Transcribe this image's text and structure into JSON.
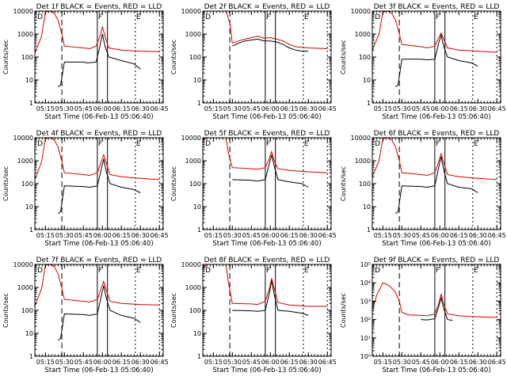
{
  "figure": {
    "xlabel": "Start Time (06-Feb-13 05:06:40)",
    "ylabel": "Counts/sec",
    "x_ticks": [
      "05:15",
      "05:30",
      "05:45",
      "06:00",
      "06:15",
      "06:30",
      "06:45"
    ],
    "colors": {
      "events": "#000000",
      "lld": "#d40000"
    }
  },
  "chart_data": [
    {
      "type": "line",
      "title": "Det 1f BLACK = Events, RED = LLD",
      "y_scale": "log",
      "ylim": [
        1,
        10000
      ],
      "y_ticks": [
        "1",
        "10",
        "100",
        "1000",
        "10000"
      ],
      "xlim": [
        "05:06:40",
        "06:48"
      ],
      "x_tick_times": [
        "05:15",
        "05:30",
        "05:45",
        "06:00",
        "06:15",
        "06:30",
        "06:45"
      ],
      "annotations": [
        "D",
        "F",
        "E"
      ],
      "series": [
        {
          "color": "black",
          "x": [
            "05:25",
            "05:27",
            "05:30",
            "05:45",
            "05:48",
            "05:55",
            "05:58",
            "06:00",
            "06:02",
            "06:05",
            "06:15",
            "06:25",
            "06:30"
          ],
          "y": [
            5,
            6,
            60,
            60,
            55,
            60,
            300,
            1000,
            300,
            100,
            70,
            50,
            30
          ]
        },
        {
          "color": "red",
          "x": [
            "05:06:40",
            "05:12",
            "05:15",
            "05:18",
            "05:20",
            "05:22",
            "05:25",
            "05:28",
            "05:30",
            "05:45",
            "05:50",
            "05:55",
            "05:58",
            "06:00",
            "06:02",
            "06:05",
            "06:15",
            "06:30",
            "06:45"
          ],
          "y": [
            150,
            800,
            9000,
            10000,
            9500,
            8000,
            4000,
            1000,
            300,
            250,
            230,
            300,
            800,
            2000,
            800,
            250,
            200,
            180,
            170
          ]
        }
      ]
    },
    {
      "type": "line",
      "title": "Det 2f BLACK = Events, RED = LLD",
      "y_scale": "log",
      "ylim": [
        1,
        10000
      ],
      "y_ticks": [
        "1",
        "10",
        "100",
        "1000",
        "10000"
      ],
      "xlim": [
        "05:06:40",
        "06:48"
      ],
      "x_tick_times": [
        "05:15",
        "05:30",
        "05:45",
        "06:00",
        "06:15",
        "06:30",
        "06:45"
      ],
      "annotations": [
        "D",
        "F",
        "E"
      ],
      "series": [
        {
          "color": "black",
          "x": [
            "05:30",
            "05:35",
            "05:40",
            "05:45",
            "05:50",
            "05:55",
            "06:00",
            "06:05",
            "06:10",
            "06:15",
            "06:20",
            "06:25",
            "06:30"
          ],
          "y": [
            300,
            400,
            500,
            550,
            600,
            500,
            500,
            450,
            350,
            250,
            200,
            180,
            180
          ]
        },
        {
          "color": "red",
          "x": [
            "05:06:40",
            "05:10",
            "05:15",
            "05:20",
            "05:25",
            "05:28",
            "05:30",
            "05:35",
            "05:40",
            "05:45",
            "05:50",
            "05:55",
            "06:00",
            "06:05",
            "06:10",
            "06:15",
            "06:20",
            "06:30",
            "06:45"
          ],
          "y": [
            10000,
            10000,
            10000,
            10000,
            10000,
            3000,
            400,
            500,
            600,
            700,
            800,
            650,
            700,
            600,
            500,
            350,
            280,
            250,
            230
          ]
        }
      ]
    },
    {
      "type": "line",
      "title": "Det 3f BLACK = Events, RED = LLD",
      "y_scale": "log",
      "ylim": [
        1,
        10000
      ],
      "y_ticks": [
        "1",
        "10",
        "100",
        "1000",
        "10000"
      ],
      "xlim": [
        "05:06:40",
        "06:48"
      ],
      "x_tick_times": [
        "05:15",
        "05:30",
        "05:45",
        "06:00",
        "06:15",
        "06:30",
        "06:45"
      ],
      "annotations": [
        "D",
        "F",
        "E"
      ],
      "series": [
        {
          "color": "black",
          "x": [
            "05:25",
            "05:27",
            "05:30",
            "05:45",
            "05:50",
            "05:56",
            "05:59",
            "06:01",
            "06:03",
            "06:06",
            "06:15",
            "06:25",
            "06:30"
          ],
          "y": [
            5,
            6,
            80,
            80,
            75,
            80,
            400,
            900,
            300,
            100,
            70,
            55,
            40
          ]
        },
        {
          "color": "red",
          "x": [
            "05:06:40",
            "05:12",
            "05:15",
            "05:18",
            "05:20",
            "05:22",
            "05:25",
            "05:28",
            "05:30",
            "05:45",
            "05:50",
            "05:56",
            "05:59",
            "06:01",
            "06:03",
            "06:06",
            "06:15",
            "06:30",
            "06:45"
          ],
          "y": [
            200,
            1000,
            9000,
            10000,
            9500,
            8000,
            4000,
            1000,
            350,
            280,
            250,
            300,
            700,
            1100,
            600,
            250,
            200,
            180,
            160
          ]
        }
      ]
    },
    {
      "type": "line",
      "title": "Det 4f BLACK = Events, RED = LLD",
      "y_scale": "log",
      "ylim": [
        1,
        10000
      ],
      "y_ticks": [
        "1",
        "10",
        "100",
        "1000",
        "10000"
      ],
      "xlim": [
        "05:06:40",
        "06:48"
      ],
      "x_tick_times": [
        "05:15",
        "05:30",
        "05:45",
        "06:00",
        "06:15",
        "06:30",
        "06:45"
      ],
      "annotations": [
        "D",
        "F",
        "E"
      ],
      "series": [
        {
          "color": "black",
          "x": [
            "05:25",
            "05:27",
            "05:30",
            "05:45",
            "05:50",
            "05:56",
            "05:59",
            "06:01",
            "06:03",
            "06:06",
            "06:15",
            "06:25",
            "06:30"
          ],
          "y": [
            5,
            6,
            80,
            75,
            70,
            80,
            400,
            1200,
            350,
            100,
            70,
            55,
            40
          ]
        },
        {
          "color": "red",
          "x": [
            "05:06:40",
            "05:12",
            "05:15",
            "05:18",
            "05:20",
            "05:22",
            "05:25",
            "05:28",
            "05:30",
            "05:45",
            "05:50",
            "05:56",
            "05:59",
            "06:01",
            "06:03",
            "06:06",
            "06:15",
            "06:30",
            "06:45"
          ],
          "y": [
            150,
            900,
            9000,
            10000,
            9500,
            8000,
            4000,
            900,
            300,
            250,
            230,
            300,
            900,
            1800,
            800,
            250,
            200,
            170,
            150
          ]
        }
      ]
    },
    {
      "type": "line",
      "title": "Det 5f BLACK = Events, RED = LLD",
      "y_scale": "log",
      "ylim": [
        1,
        10000
      ],
      "y_ticks": [
        "1",
        "10",
        "100",
        "1000",
        "10000"
      ],
      "xlim": [
        "05:06:40",
        "06:48"
      ],
      "x_tick_times": [
        "05:15",
        "05:30",
        "05:45",
        "06:00",
        "06:15",
        "06:30",
        "06:45"
      ],
      "annotations": [
        "D",
        "F",
        "E"
      ],
      "series": [
        {
          "color": "black",
          "x": [
            "05:30",
            "05:45",
            "05:50",
            "05:56",
            "05:59",
            "06:01",
            "06:03",
            "06:06",
            "06:15",
            "06:25",
            "06:30"
          ],
          "y": [
            150,
            140,
            130,
            150,
            700,
            1800,
            600,
            150,
            120,
            100,
            70
          ]
        },
        {
          "color": "red",
          "x": [
            "05:06:40",
            "05:10",
            "05:15",
            "05:20",
            "05:25",
            "05:27",
            "05:30",
            "05:45",
            "05:50",
            "05:56",
            "05:59",
            "06:01",
            "06:03",
            "06:06",
            "06:15",
            "06:30",
            "06:45"
          ],
          "y": [
            8000,
            10000,
            10000,
            10000,
            10000,
            2000,
            500,
            450,
            420,
            500,
            1200,
            2500,
            1000,
            450,
            380,
            330,
            300
          ]
        }
      ]
    },
    {
      "type": "line",
      "title": "Det 6f BLACK = Events, RED = LLD",
      "y_scale": "log",
      "ylim": [
        1,
        10000
      ],
      "y_ticks": [
        "1",
        "10",
        "100",
        "1000",
        "10000"
      ],
      "xlim": [
        "05:06:40",
        "06:48"
      ],
      "x_tick_times": [
        "05:15",
        "05:30",
        "05:45",
        "06:00",
        "06:15",
        "06:30",
        "06:45"
      ],
      "annotations": [
        "D",
        "F",
        "E"
      ],
      "series": [
        {
          "color": "black",
          "x": [
            "05:25",
            "05:27",
            "05:30",
            "05:45",
            "05:50",
            "05:56",
            "05:59",
            "06:01",
            "06:03",
            "06:06",
            "06:15",
            "06:25",
            "06:30"
          ],
          "y": [
            5,
            6,
            80,
            75,
            70,
            80,
            500,
            1500,
            400,
            100,
            70,
            60,
            40
          ]
        },
        {
          "color": "red",
          "x": [
            "05:06:40",
            "05:12",
            "05:15",
            "05:18",
            "05:20",
            "05:22",
            "05:25",
            "05:28",
            "05:30",
            "05:45",
            "05:50",
            "05:56",
            "05:59",
            "06:01",
            "06:03",
            "06:06",
            "06:15",
            "06:30",
            "06:45"
          ],
          "y": [
            200,
            1000,
            9000,
            10000,
            9500,
            8000,
            4000,
            1000,
            300,
            250,
            230,
            300,
            900,
            2000,
            800,
            250,
            200,
            170,
            150
          ]
        }
      ]
    },
    {
      "type": "line",
      "title": "Det 7f BLACK = Events, RED = LLD",
      "y_scale": "log",
      "ylim": [
        1,
        10000
      ],
      "y_ticks": [
        "1",
        "10",
        "100",
        "1000",
        "10000"
      ],
      "xlim": [
        "05:06:40",
        "06:48"
      ],
      "x_tick_times": [
        "05:15",
        "05:30",
        "05:45",
        "06:00",
        "06:15",
        "06:30",
        "06:45"
      ],
      "annotations": [
        "D",
        "F",
        "E"
      ],
      "series": [
        {
          "color": "black",
          "x": [
            "05:25",
            "05:27",
            "05:30",
            "05:45",
            "05:50",
            "05:56",
            "05:59",
            "06:01",
            "06:03",
            "06:06",
            "06:15",
            "06:25",
            "06:30"
          ],
          "y": [
            5,
            6,
            70,
            65,
            60,
            70,
            400,
            1200,
            350,
            100,
            60,
            45,
            30
          ]
        },
        {
          "color": "red",
          "x": [
            "05:06:40",
            "05:12",
            "05:15",
            "05:18",
            "05:20",
            "05:22",
            "05:25",
            "05:28",
            "05:30",
            "05:45",
            "05:50",
            "05:56",
            "05:59",
            "06:01",
            "06:03",
            "06:06",
            "06:15",
            "06:30",
            "06:45"
          ],
          "y": [
            150,
            900,
            9000,
            10000,
            9500,
            8000,
            4000,
            900,
            300,
            250,
            230,
            300,
            900,
            1800,
            800,
            250,
            200,
            180,
            170
          ]
        }
      ]
    },
    {
      "type": "line",
      "title": "Det 8f BLACK = Events, RED = LLD",
      "y_scale": "log",
      "ylim": [
        1,
        10000
      ],
      "y_ticks": [
        "1",
        "10",
        "100",
        "1000",
        "10000"
      ],
      "xlim": [
        "05:06:40",
        "06:48"
      ],
      "x_tick_times": [
        "05:15",
        "05:30",
        "05:45",
        "06:00",
        "06:15",
        "06:30",
        "06:45"
      ],
      "annotations": [
        "D",
        "F",
        "E"
      ],
      "series": [
        {
          "color": "black",
          "x": [
            "05:30",
            "05:45",
            "05:50",
            "05:56",
            "05:59",
            "06:01",
            "06:03",
            "06:06",
            "06:15",
            "06:25",
            "06:30"
          ],
          "y": [
            100,
            95,
            90,
            100,
            500,
            2000,
            500,
            100,
            90,
            75,
            60
          ]
        },
        {
          "color": "red",
          "x": [
            "05:06:40",
            "05:10",
            "05:15",
            "05:20",
            "05:25",
            "05:27",
            "05:30",
            "05:45",
            "05:50",
            "05:56",
            "05:59",
            "06:01",
            "06:03",
            "06:06",
            "06:15",
            "06:30",
            "06:45"
          ],
          "y": [
            6000,
            10000,
            10000,
            10000,
            10000,
            1500,
            200,
            190,
            180,
            250,
            800,
            2500,
            900,
            220,
            170,
            150,
            150
          ]
        }
      ]
    },
    {
      "type": "line",
      "title": "Det 9f BLACK = Events, RED = LLD",
      "y_scale": "log",
      "ylim": [
        1,
        100000
      ],
      "y_ticks": [
        "10⁰",
        "10¹",
        "10²",
        "10³",
        "10⁴",
        "10⁵"
      ],
      "xlim": [
        "05:06:40",
        "06:48"
      ],
      "x_tick_times": [
        "05:15",
        "05:30",
        "05:45",
        "06:00",
        "06:15",
        "06:30",
        "06:45"
      ],
      "annotations": [
        "D",
        "F",
        "E"
      ],
      "series": [
        {
          "color": "black",
          "x": [
            "05:45",
            "05:50",
            "05:56",
            "05:59",
            "06:01",
            "06:03",
            "06:06",
            "06:10"
          ],
          "y": [
            100,
            95,
            110,
            500,
            1500,
            400,
            100,
            90
          ]
        },
        {
          "color": "red",
          "x": [
            "05:06:40",
            "05:10",
            "05:15",
            "05:20",
            "05:25",
            "05:28",
            "05:30",
            "05:35",
            "05:45",
            "05:50",
            "05:56",
            "05:59",
            "06:01",
            "06:03",
            "06:06",
            "06:15",
            "06:30",
            "06:45"
          ],
          "y": [
            300,
            2000,
            10000,
            7000,
            3000,
            1000,
            250,
            180,
            170,
            160,
            200,
            700,
            2500,
            700,
            200,
            160,
            140,
            130
          ]
        }
      ]
    }
  ]
}
